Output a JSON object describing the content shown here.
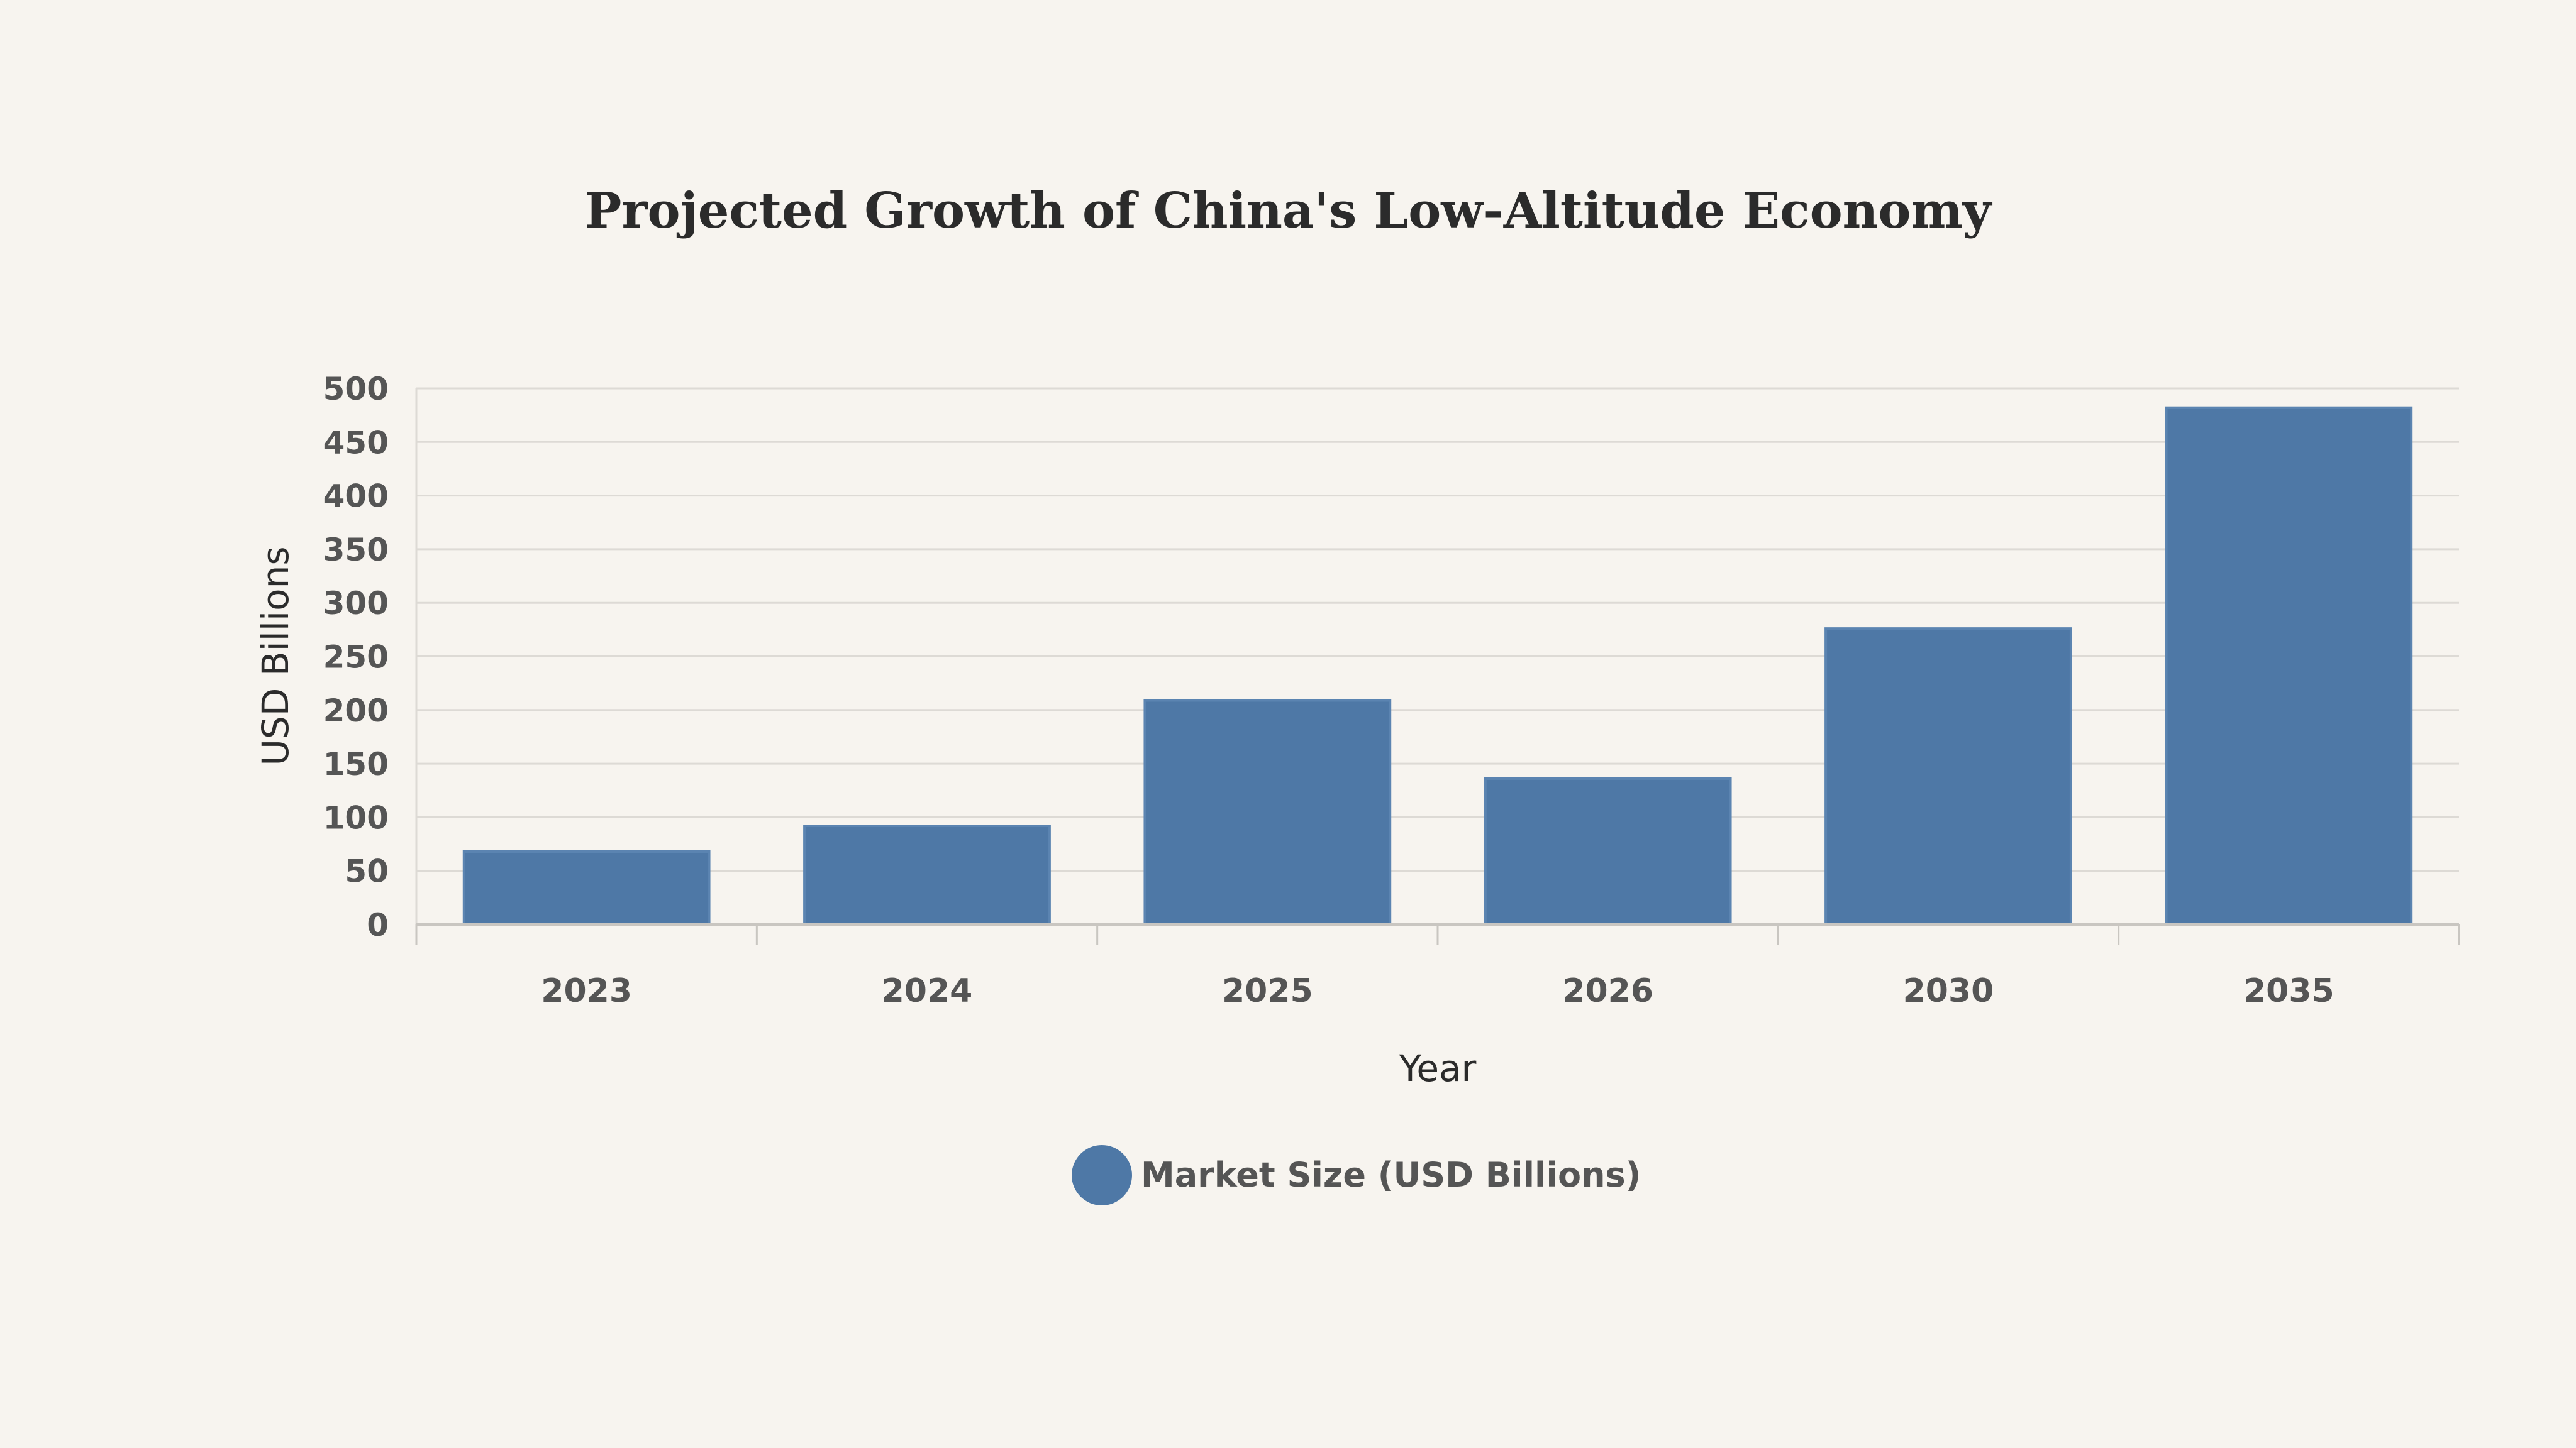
{
  "chart_data": {
    "type": "bar",
    "title": "Projected Growth of China's Low-Altitude Economy",
    "xlabel": "Year",
    "ylabel": "USD Billions",
    "categories": [
      "2023",
      "2024",
      "2025",
      "2026",
      "2030",
      "2035"
    ],
    "series": [
      {
        "name": "Market Size (USD Billions)",
        "values": [
          68,
          92,
          209,
          136,
          276,
          482
        ],
        "color": "#4e78a6"
      }
    ],
    "ylim": [
      0,
      500
    ],
    "yticks": [
      0,
      50,
      100,
      150,
      200,
      250,
      300,
      350,
      400,
      450,
      500
    ],
    "grid": true,
    "legend_position": "bottom-center"
  }
}
